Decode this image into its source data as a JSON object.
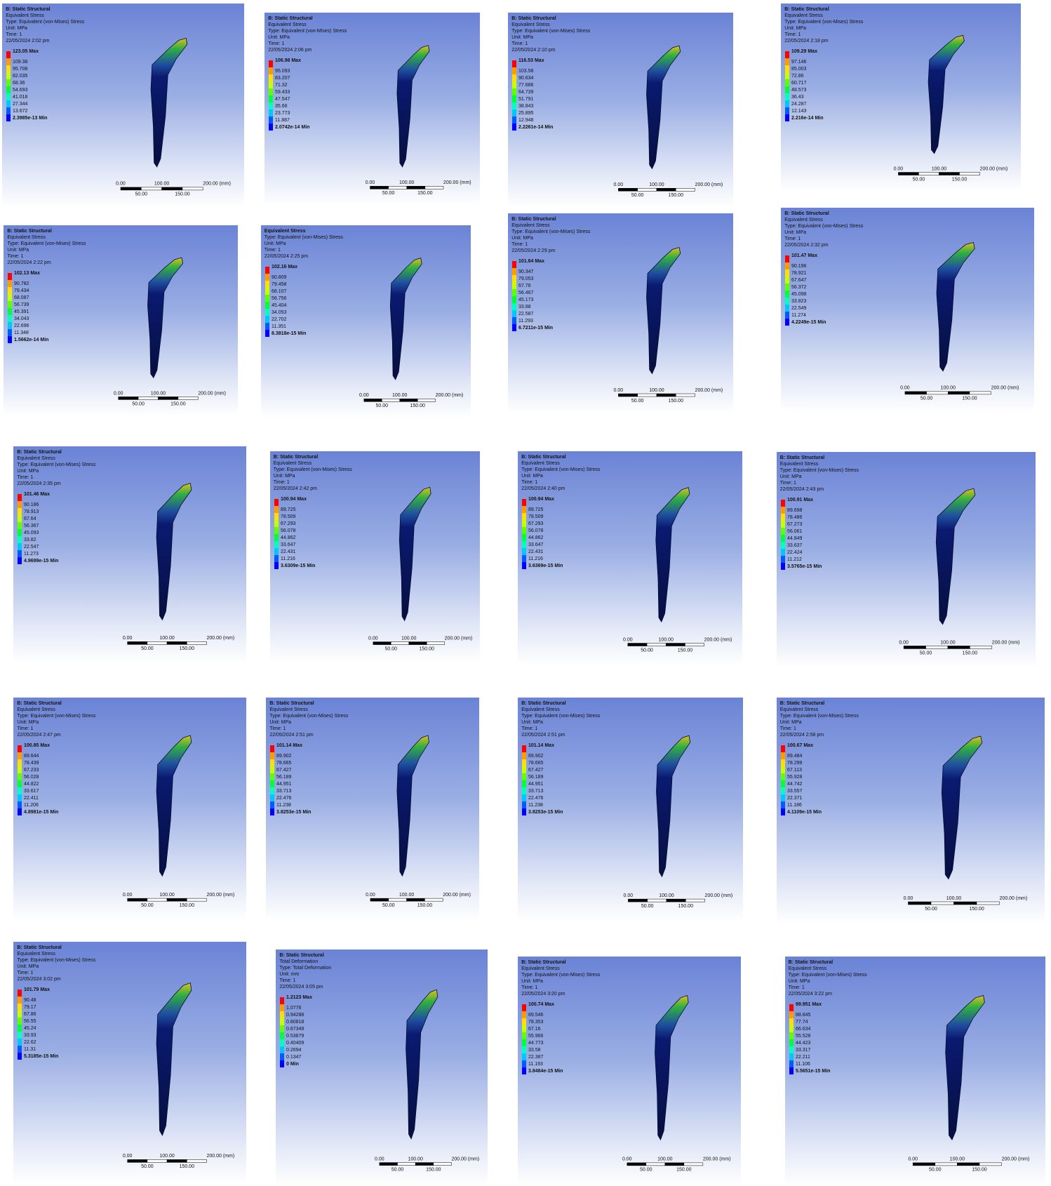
{
  "scale_bar": [
    "0.00",
    "100.00",
    "200.00 (mm)",
    "50.00",
    "150.00"
  ],
  "panels": [
    {
      "lines": [
        "B: Static Structural",
        "Equivalent Stress",
        "Type: Equivalent (von-Mises) Stress",
        "Unit: MPa",
        "Time: 1",
        "22/05/2024 2:02 pm"
      ],
      "legend": [
        "123.05 Max",
        "109.38",
        "95.708",
        "82.035",
        "68.36",
        "54.693",
        "41.018",
        "27.344",
        "13.672",
        "2.3985e-13 Min"
      ]
    },
    {
      "lines": [
        "B: Static Structural",
        "Equivalent Stress",
        "Type: Equivalent (von-Mises) Stress",
        "Unit: MPa",
        "Time: 1",
        "22/05/2024 2:06 pm"
      ],
      "legend": [
        "106.98 Max",
        "95.093",
        "83.207",
        "71.32",
        "59.433",
        "47.547",
        "35.66",
        "23.773",
        "11.887",
        "2.0742e-14 Min"
      ]
    },
    {
      "lines": [
        "B: Static Structural",
        "Equivalent Stress",
        "Type: Equivalent (von-Mises) Stress",
        "Unit: MPa",
        "Time: 1",
        "22/05/2024 2:10 pm"
      ],
      "legend": [
        "116.53 Max",
        "103.58",
        "90.634",
        "77.686",
        "64.739",
        "51.791",
        "38.843",
        "25.895",
        "12.948",
        "2.2261e-14 Min"
      ]
    },
    {
      "lines": [
        "B: Static Structural",
        "Equivalent Stress",
        "Type: Equivalent (von-Mises) Stress",
        "Unit: MPa",
        "Time: 1",
        "22/05/2024 2:18 pm"
      ],
      "legend": [
        "109.29 Max",
        "97.146",
        "85.003",
        "72.86",
        "60.717",
        "48.573",
        "36.43",
        "24.287",
        "12.143",
        "2.216e-14 Min"
      ]
    },
    {
      "lines": [
        "B: Static Structural",
        "Equivalent Stress",
        "Type: Equivalent (von-Mises) Stress",
        "Unit: MPa",
        "Time: 1",
        "22/05/2024 2:22 pm"
      ],
      "legend": [
        "102.13 Max",
        "90.782",
        "79.434",
        "68.087",
        "56.739",
        "45.391",
        "34.043",
        "22.696",
        "11.348",
        "1.5662e-14 Min"
      ]
    },
    {
      "lines": [
        "Equivalent Stress",
        "Type: Equivalent (von-Mises) Stress",
        "Unit: MPa",
        "Time: 1",
        "22/05/2024 2:25 pm"
      ],
      "legend": [
        "102.16 Max",
        "90.809",
        "79.458",
        "68.107",
        "56.756",
        "45.404",
        "34.053",
        "22.702",
        "11.351",
        "8.3818e-15 Min"
      ]
    },
    {
      "lines": [
        "B: Static Structural",
        "Equivalent Stress",
        "Type: Equivalent (von-Mises) Stress",
        "Unit: MPa",
        "Time: 1",
        "22/05/2024 2:29 pm"
      ],
      "legend": [
        "101.64 Max",
        "90.347",
        "79.053",
        "67.76",
        "56.467",
        "45.173",
        "33.88",
        "22.587",
        "11.293",
        "6.7211e-15 Min"
      ]
    },
    {
      "lines": [
        "B: Static Structural",
        "Equivalent Stress",
        "Type: Equivalent (von-Mises) Stress",
        "Unit: MPa",
        "Time: 1",
        "22/05/2024 2:32 pm"
      ],
      "legend": [
        "101.47 Max",
        "90.196",
        "78.921",
        "67.647",
        "56.372",
        "45.098",
        "33.823",
        "22.549",
        "11.274",
        "4.2249e-15 Min"
      ]
    },
    {
      "lines": [
        "B: Static Structural",
        "Equivalent Stress",
        "Type: Equivalent (von-Mises) Stress",
        "Unit: MPa",
        "Time: 1",
        "22/05/2024 2:35 pm"
      ],
      "legend": [
        "101.46 Max",
        "90.186",
        "78.913",
        "67.64",
        "56.367",
        "45.093",
        "33.82",
        "22.547",
        "11.273",
        "4.9699e-15 Min"
      ]
    },
    {
      "lines": [
        "B: Static Structural",
        "Equivalent Stress",
        "Type: Equivalent (von-Mises) Stress",
        "Unit: MPa",
        "Time: 1",
        "22/05/2024 2:42 pm"
      ],
      "legend": [
        "100.94 Max",
        "89.725",
        "78.509",
        "67.293",
        "56.078",
        "44.862",
        "33.647",
        "22.431",
        "11.216",
        "3.6309e-15 Min"
      ]
    },
    {
      "lines": [
        "B: Static Structural",
        "Equivalent Stress",
        "Type: Equivalent (von-Mises) Stress",
        "Unit: MPa",
        "Time: 1",
        "22/05/2024 2:40 pm"
      ],
      "legend": [
        "100.94 Max",
        "89.725",
        "78.509",
        "67.293",
        "56.078",
        "44.862",
        "33.647",
        "22.431",
        "11.216",
        "3.6369e-15 Min"
      ]
    },
    {
      "lines": [
        "B: Static Structural",
        "Equivalent Stress",
        "Type: Equivalent (von-Mises) Stress",
        "Unit: MPa",
        "Time: 1",
        "22/05/2024 2:43 pm"
      ],
      "legend": [
        "100.91 Max",
        "89.698",
        "78.486",
        "67.273",
        "56.061",
        "44.849",
        "33.637",
        "22.424",
        "11.212",
        "3.5765e-15 Min"
      ]
    },
    {
      "lines": [
        "B: Static Structural",
        "Equivalent Stress",
        "Type: Equivalent (von-Mises) Stress",
        "Unit: MPa",
        "Time: 1",
        "22/05/2024 2:47 pm"
      ],
      "legend": [
        "100.85 Max",
        "89.644",
        "78.439",
        "67.233",
        "56.028",
        "44.822",
        "33.617",
        "22.411",
        "11.206",
        "4.8981e-15 Min"
      ]
    },
    {
      "lines": [
        "B: Static Structural",
        "Equivalent Stress",
        "Type: Equivalent (von-Mises) Stress",
        "Unit: MPa",
        "Time: 1",
        "22/05/2024 2:51 pm"
      ],
      "legend": [
        "101.14 Max",
        "89.902",
        "78.665",
        "67.427",
        "56.189",
        "44.951",
        "33.713",
        "22.476",
        "11.238",
        "3.8253e-15 Min"
      ]
    },
    {
      "lines": [
        "B: Static Structural",
        "Equivalent Stress",
        "Type: Equivalent (von-Mises) Stress",
        "Unit: MPa",
        "Time: 1",
        "22/05/2024 2:51 pm"
      ],
      "legend": [
        "101.14 Max",
        "89.902",
        "78.665",
        "67.427",
        "56.189",
        "44.951",
        "33.713",
        "22.476",
        "11.238",
        "3.8253e-15 Min"
      ]
    },
    {
      "lines": [
        "B: Static Structural",
        "Equivalent Stress",
        "Type: Equivalent (von-Mises) Stress",
        "Unit: MPa",
        "Time: 1",
        "22/05/2024 2:58 pm"
      ],
      "legend": [
        "100.67 Max",
        "89.484",
        "78.299",
        "67.113",
        "55.928",
        "44.742",
        "33.557",
        "22.371",
        "11.186",
        "4.1109e-15 Min"
      ]
    },
    {
      "lines": [
        "B: Static Structural",
        "Equivalent Stress",
        "Type: Equivalent (von-Mises) Stress",
        "Unit: MPa",
        "Time: 1",
        "22/05/2024 3:02 pm"
      ],
      "legend": [
        "101.79 Max",
        "90.48",
        "79.17",
        "67.86",
        "56.55",
        "45.24",
        "33.93",
        "22.62",
        "11.31",
        "5.3185e-15 Min"
      ]
    },
    {
      "lines": [
        "B: Static Structural",
        "Total Deformation",
        "Type: Total Deformation",
        "Unit: mm",
        "Time: 1",
        "22/05/2024 3:05 pm"
      ],
      "legend": [
        "1.2123 Max",
        "1.0776",
        "0.94288",
        "0.80818",
        "0.67349",
        "0.53879",
        "0.40409",
        "0.2694",
        "0.1347",
        "0 Min"
      ]
    },
    {
      "lines": [
        "B: Static Structural",
        "Equivalent Stress",
        "Type: Equivalent (von-Mises) Stress",
        "Unit: MPa",
        "Time: 1",
        "22/05/2024 3:20 pm"
      ],
      "legend": [
        "100.74 Max",
        "89.546",
        "78.353",
        "67.16",
        "55.966",
        "44.773",
        "33.58",
        "22.387",
        "11.193",
        "3.8484e-15 Min"
      ]
    },
    {
      "lines": [
        "B: Static Structural",
        "Equivalent Stress",
        "Type: Equivalent (von-Mises) Stress",
        "Unit: MPa",
        "Time: 1",
        "22/05/2024 3:22 pm"
      ],
      "legend": [
        "99.951 Max",
        "88.845",
        "77.74",
        "66.634",
        "55.528",
        "44.423",
        "33.317",
        "22.211",
        "11.106",
        "5.5651e-15 Min"
      ]
    }
  ]
}
